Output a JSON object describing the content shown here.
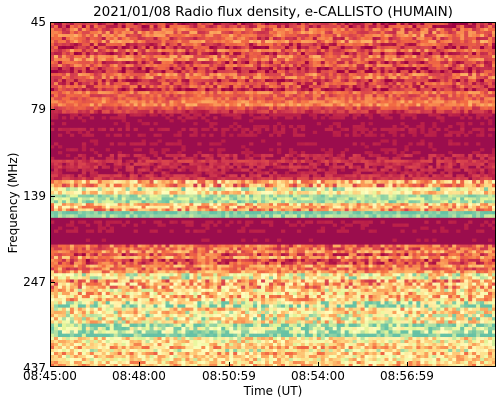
{
  "chart_data": {
    "type": "heatmap",
    "title": "2021/01/08  Radio flux density, e-CALLISTO (HUMAIN)",
    "xlabel": "Time (UT)",
    "ylabel": "Frequency (MHz)",
    "x_tick_labels": [
      "08:45:00",
      "08:48:00",
      "08:50:59",
      "08:54:00",
      "08:56:59"
    ],
    "y_tick_labels": [
      "45",
      "79",
      "139",
      "247",
      "437"
    ],
    "x_range": [
      "08:45:00",
      "09:00:00"
    ],
    "y_range_mhz": [
      45,
      437
    ],
    "y_axis_inverted": true,
    "colormap": "Spectral",
    "bands": [
      {
        "f_start": 45,
        "f_end": 72,
        "level": 0.22,
        "speckle": 0.35
      },
      {
        "f_start": 72,
        "f_end": 78,
        "level": 0.3,
        "speckle": 0.25
      },
      {
        "f_start": 78,
        "f_end": 82,
        "level": 0.18,
        "speckle": 0.2
      },
      {
        "f_start": 82,
        "f_end": 110,
        "level": 0.06,
        "speckle": 0.05
      },
      {
        "f_start": 110,
        "f_end": 128,
        "level": 0.1,
        "speckle": 0.15
      },
      {
        "f_start": 128,
        "f_end": 133,
        "level": 0.45,
        "speckle": 0.55
      },
      {
        "f_start": 133,
        "f_end": 138,
        "level": 0.65,
        "speckle": 0.45
      },
      {
        "f_start": 138,
        "f_end": 148,
        "level": 0.88,
        "speckle": 0.2
      },
      {
        "f_start": 148,
        "f_end": 158,
        "level": 0.55,
        "speckle": 0.5
      },
      {
        "f_start": 158,
        "f_end": 166,
        "level": 0.95,
        "speckle": 0.15
      },
      {
        "f_start": 166,
        "f_end": 200,
        "level": 0.05,
        "speckle": 0.05
      },
      {
        "f_start": 200,
        "f_end": 236,
        "level": 0.3,
        "speckle": 0.4
      },
      {
        "f_start": 236,
        "f_end": 290,
        "level": 0.55,
        "speckle": 0.6
      },
      {
        "f_start": 290,
        "f_end": 340,
        "level": 0.8,
        "speckle": 0.6
      },
      {
        "f_start": 340,
        "f_end": 370,
        "level": 0.92,
        "speckle": 0.4
      },
      {
        "f_start": 370,
        "f_end": 437,
        "level": 0.6,
        "speckle": 0.5
      }
    ]
  }
}
